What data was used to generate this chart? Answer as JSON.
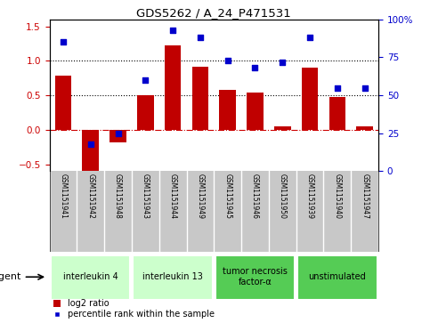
{
  "title": "GDS5262 / A_24_P471531",
  "samples": [
    "GSM1151941",
    "GSM1151942",
    "GSM1151948",
    "GSM1151943",
    "GSM1151944",
    "GSM1151949",
    "GSM1151945",
    "GSM1151946",
    "GSM1151950",
    "GSM1151939",
    "GSM1151940",
    "GSM1151947"
  ],
  "log2_ratio": [
    0.78,
    -0.62,
    -0.18,
    0.5,
    1.22,
    0.92,
    0.58,
    0.54,
    0.05,
    0.9,
    0.47,
    0.05
  ],
  "percentile_rank": [
    85,
    18,
    25,
    60,
    93,
    88,
    73,
    68,
    72,
    88,
    55,
    55
  ],
  "ylim_left": [
    -0.6,
    1.6
  ],
  "ylim_right": [
    0,
    100
  ],
  "yticks_left": [
    -0.5,
    0.0,
    0.5,
    1.0,
    1.5
  ],
  "yticks_right": [
    0,
    25,
    50,
    75,
    100
  ],
  "bar_color": "#c00000",
  "dot_color": "#0000cc",
  "groups": [
    {
      "label": "interleukin 4",
      "start": 0,
      "end": 3,
      "color": "#ccffcc"
    },
    {
      "label": "interleukin 13",
      "start": 3,
      "end": 6,
      "color": "#ccffcc"
    },
    {
      "label": "tumor necrosis\nfactor-α",
      "start": 6,
      "end": 9,
      "color": "#55cc55"
    },
    {
      "label": "unstimulated",
      "start": 9,
      "end": 12,
      "color": "#55cc55"
    }
  ],
  "agent_label": "agent",
  "legend_bar_label": "log2 ratio",
  "legend_dot_label": "percentile rank within the sample",
  "background_color": "#ffffff",
  "plot_bg": "#ffffff",
  "ylabel_left_color": "#cc0000",
  "ylabel_right_color": "#0000cc",
  "sample_box_color": "#c8c8c8",
  "sample_text_color": "#000000"
}
